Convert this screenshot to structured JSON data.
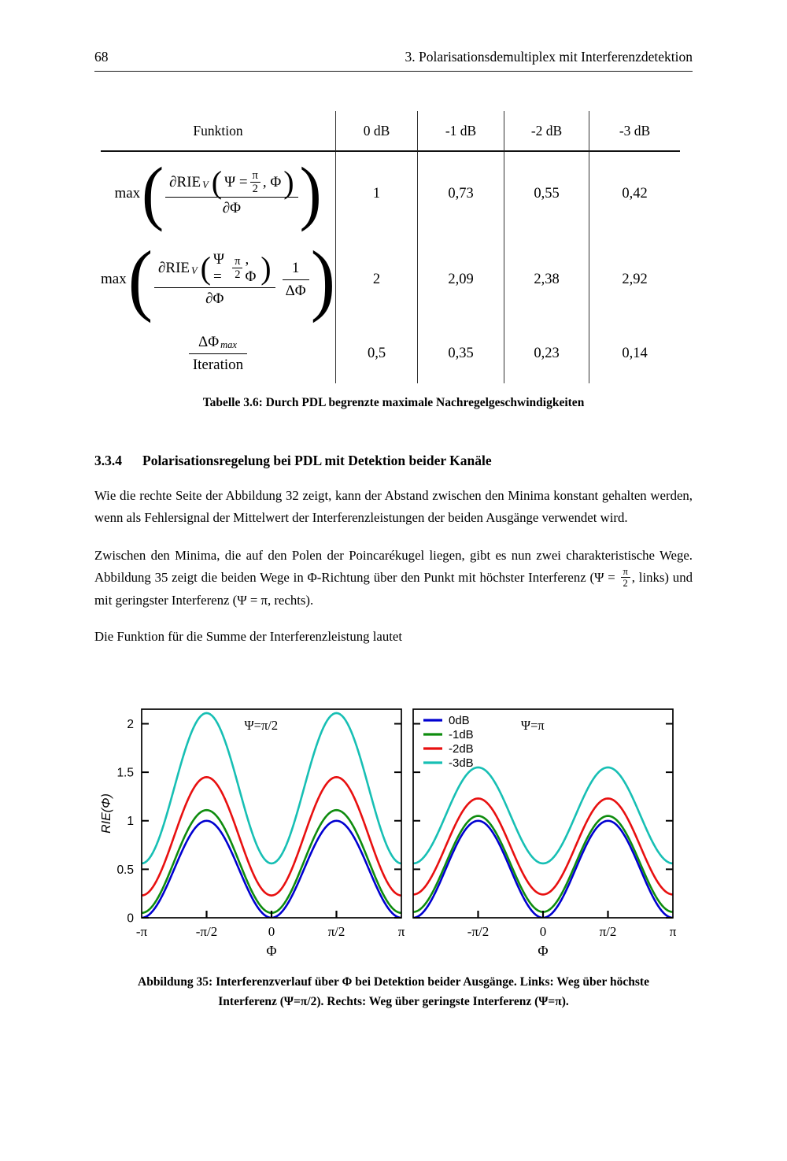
{
  "header": {
    "page_number": "68",
    "title": "3. Polarisationsdemultiplex mit Interferenzdetektion"
  },
  "table": {
    "columns": [
      "Funktion",
      "0 dB",
      "-1 dB",
      "-2 dB",
      "-3 dB"
    ],
    "row1": {
      "prefix": "max",
      "paren_open": "(",
      "paren_close": ")",
      "num_pre": "∂RIE",
      "num_sub": "V",
      "arg_open": "(",
      "arg_psi": "Ψ =",
      "frac_num": "π",
      "frac_den": "2",
      "arg_post": ", Φ",
      "arg_close": ")",
      "den": "∂Φ",
      "values": [
        "1",
        "0,73",
        "0,55",
        "0,42"
      ]
    },
    "row2": {
      "prefix": "max",
      "paren_open": "(",
      "paren_close": ")",
      "num_pre": "∂RIE",
      "num_sub": "V",
      "arg_open": "(",
      "arg_psi": "Ψ =",
      "frac_num": "π",
      "frac_den": "2",
      "arg_post": ", Φ",
      "arg_close": ")",
      "den": "∂Φ",
      "mul_num": "1",
      "mul_den": "ΔΦ",
      "values": [
        "2",
        "2,09",
        "2,38",
        "2,92"
      ]
    },
    "row3": {
      "num": "ΔΦ",
      "num_sub": "max",
      "den": "Iteration",
      "values": [
        "0,5",
        "0,35",
        "0,23",
        "0,14"
      ]
    },
    "caption": "Tabelle 3.6: Durch PDL begrenzte maximale Nachregelgeschwindigkeiten"
  },
  "section": {
    "number": "3.3.4",
    "title": "Polarisationsregelung bei PDL mit Detektion beider Kanäle"
  },
  "paragraphs": {
    "p1": "Wie die rechte Seite der Abbildung 32 zeigt, kann der Abstand zwischen den Minima konstant gehalten werden, wenn als Fehlersignal der Mittelwert der Interferenzleistungen der beiden Ausgänge verwendet wird.",
    "p2_pre": "Zwischen den Minima, die auf den Polen der Poincarékugel liegen, gibt es nun zwei charakteristische Wege. Abbildung 35 zeigt die beiden Wege in Φ-Richtung über den Punkt mit höchster Interferenz (Ψ =",
    "p2_frac_num": "π",
    "p2_frac_den": "2",
    "p2_post": ", links) und mit geringster Interferenz (Ψ = π, rechts).",
    "p3": "Die Funktion für die Summe der Interferenzleistung lautet"
  },
  "figure": {
    "caption_line1": "Abbildung 35: Interferenzverlauf über Φ bei Detektion beider Ausgänge. Links: Weg über höchste",
    "caption_line2": "Interferenz (Ψ=π/2).  Rechts: Weg über geringste Interferenz (Ψ=π)."
  },
  "chart_data": [
    {
      "type": "line",
      "panel": "left",
      "annotation": "Ψ=π/2",
      "xlabel": "Φ",
      "ylabel": "RIE(Φ)",
      "x_range_pi": [
        -1,
        1
      ],
      "ylim": [
        0,
        2.15
      ],
      "y_ticks": [
        0,
        0.5,
        1,
        1.5,
        2
      ],
      "y_tick_labels": [
        "0",
        "0.5",
        "1",
        "1.5",
        "2"
      ],
      "show_y_tick_labels": true,
      "x_minor_ticks_pi": [
        -0.5,
        0,
        0.5
      ],
      "x_tick_labels": [
        {
          "pos": -1,
          "label": "-π"
        },
        {
          "pos": -0.5,
          "label": "-π/2"
        },
        {
          "pos": 0,
          "label": "0"
        },
        {
          "pos": 0.5,
          "label": "π/2"
        },
        {
          "pos": 1,
          "label": "π"
        }
      ],
      "legend": false,
      "grid": false,
      "curve_model": "RIE(Φ) = min + (max − min) · sin²(Φ)",
      "series": [
        {
          "name": "0dB",
          "color": "#0000d0",
          "min": 0.0,
          "max": 1.0
        },
        {
          "name": "-1dB",
          "color": "#0e8c0e",
          "min": 0.05,
          "max": 1.11
        },
        {
          "name": "-2dB",
          "color": "#e81010",
          "min": 0.23,
          "max": 1.45
        },
        {
          "name": "-3dB",
          "color": "#17bfb4",
          "min": 0.56,
          "max": 2.11
        }
      ]
    },
    {
      "type": "line",
      "panel": "right",
      "annotation": "Ψ=π",
      "xlabel": "Φ",
      "ylabel": "",
      "x_range_pi": [
        -1,
        1
      ],
      "ylim": [
        0,
        2.15
      ],
      "y_ticks": [
        0,
        0.5,
        1,
        1.5,
        2
      ],
      "y_tick_labels": [],
      "show_y_tick_labels": false,
      "x_minor_ticks_pi": [
        -0.5,
        0,
        0.5
      ],
      "x_tick_labels": [
        {
          "pos": -0.5,
          "label": "-π/2"
        },
        {
          "pos": 0,
          "label": "0"
        },
        {
          "pos": 0.5,
          "label": "π/2"
        },
        {
          "pos": 1,
          "label": "π"
        }
      ],
      "legend": true,
      "legend_position": "top-left",
      "grid": false,
      "curve_model": "RIE(Φ) = min + (max − min) · sin²(Φ)",
      "series": [
        {
          "name": "0dB",
          "color": "#0000d0",
          "min": 0.0,
          "max": 1.0
        },
        {
          "name": "-1dB",
          "color": "#0e8c0e",
          "min": 0.06,
          "max": 1.05
        },
        {
          "name": "-2dB",
          "color": "#e81010",
          "min": 0.24,
          "max": 1.23
        },
        {
          "name": "-3dB",
          "color": "#17bfb4",
          "min": 0.56,
          "max": 1.55
        }
      ]
    }
  ]
}
